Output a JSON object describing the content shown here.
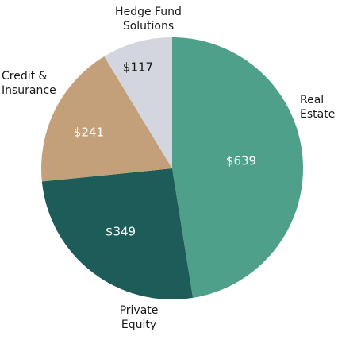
{
  "chart_data": {
    "type": "pie",
    "categories": [
      "Real Estate",
      "Private Equity",
      "Credit & Insurance",
      "Hedge Fund Solutions"
    ],
    "values": [
      639,
      349,
      241,
      117
    ],
    "value_labels": [
      "$639",
      "$349",
      "$241",
      "$117"
    ],
    "colors": [
      "#4fa08b",
      "#1d5c59",
      "#c4a07a",
      "#d3d6de"
    ],
    "value_label_colors": [
      "#ffffff",
      "#ffffff",
      "#ffffff",
      "#1a1a1a"
    ]
  }
}
